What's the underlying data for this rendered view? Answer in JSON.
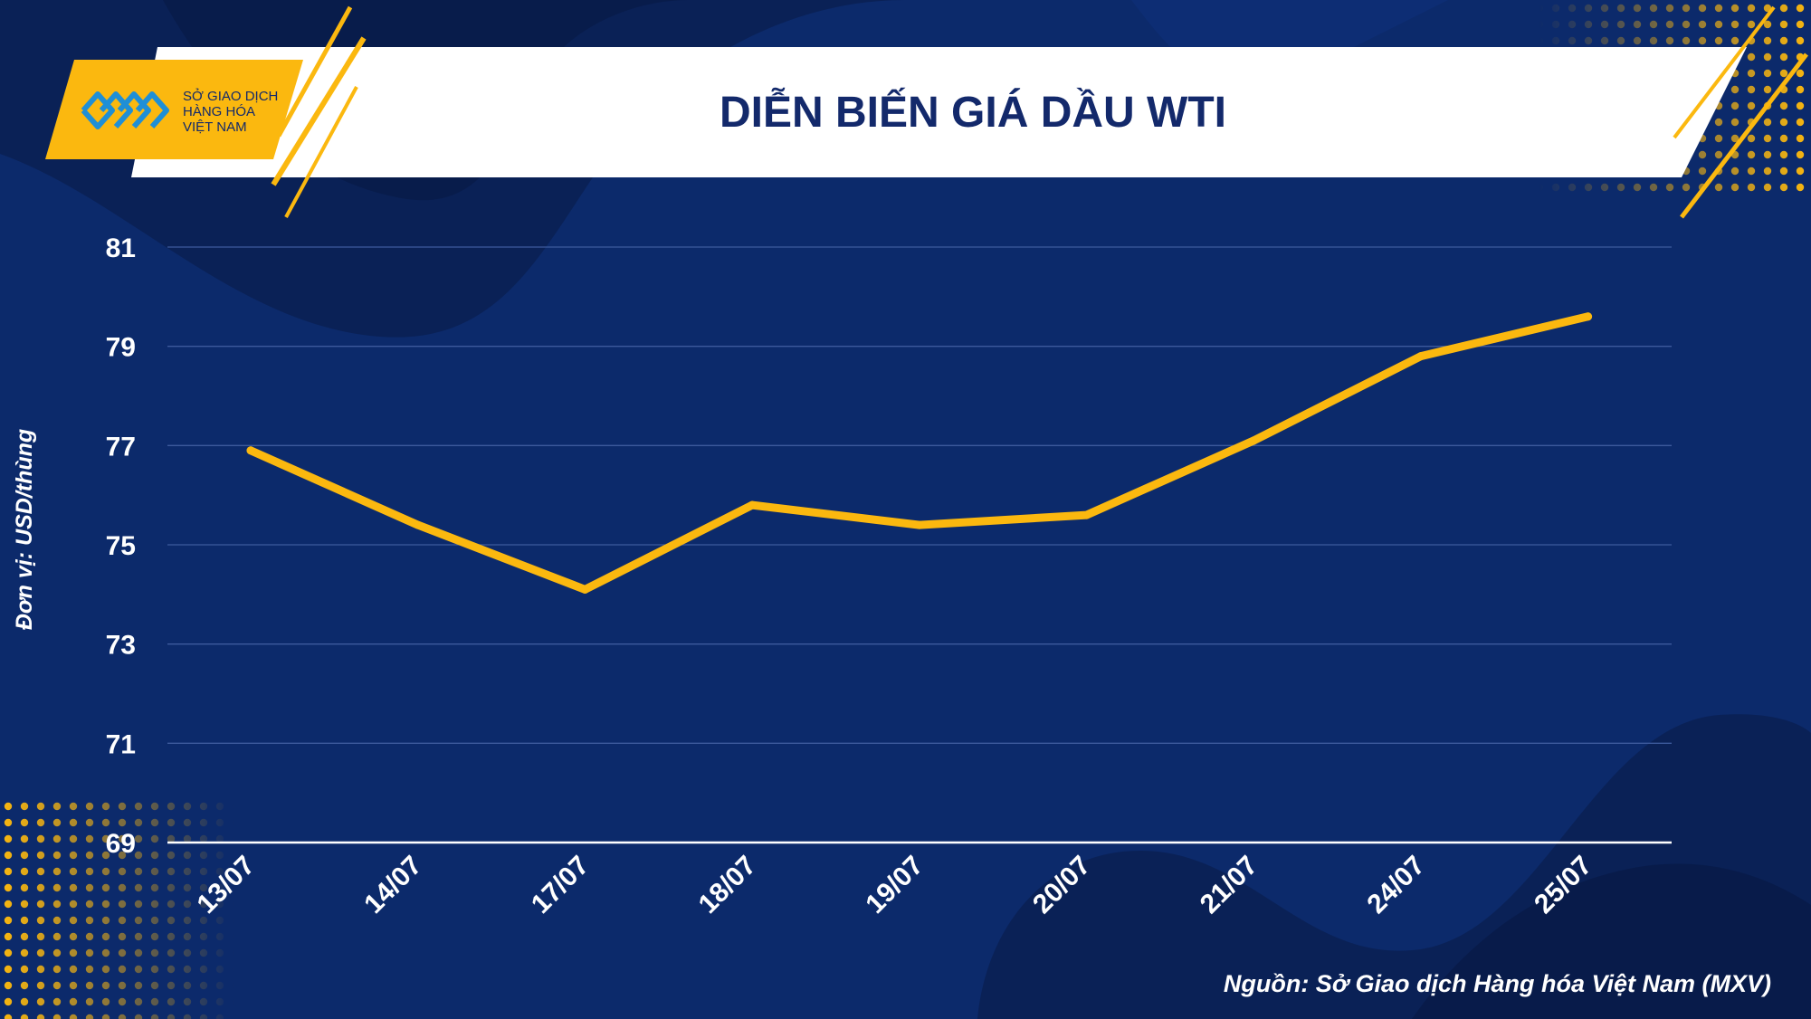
{
  "logo": {
    "line1": "SỞ GIAO DỊCH",
    "line2": "HÀNG HÓA",
    "line3": "VIỆT NAM"
  },
  "colors": {
    "background": "#0c2a6b",
    "line": "#fbb80f",
    "accent": "#fbb80f",
    "banner": "#ffffff",
    "title": "#13296b",
    "text": "#ffffff"
  },
  "chart_data": {
    "type": "line",
    "title": "DIỄN BIẾN GIÁ DẦU WTI",
    "xlabel": "",
    "ylabel": "Đơn vị: USD/thùng",
    "categories": [
      "13/07",
      "14/07",
      "17/07",
      "18/07",
      "19/07",
      "20/07",
      "21/07",
      "24/07",
      "25/07"
    ],
    "series": [
      {
        "values": [
          76.9,
          75.4,
          74.1,
          75.8,
          75.4,
          75.6,
          77.1,
          78.8,
          79.6
        ]
      }
    ],
    "ylim": [
      69,
      81
    ],
    "yticks": [
      69,
      71,
      73,
      75,
      77,
      79,
      81
    ],
    "grid": true,
    "legend": "none"
  },
  "source": "Nguồn: Sở Giao dịch Hàng hóa Việt Nam (MXV)"
}
